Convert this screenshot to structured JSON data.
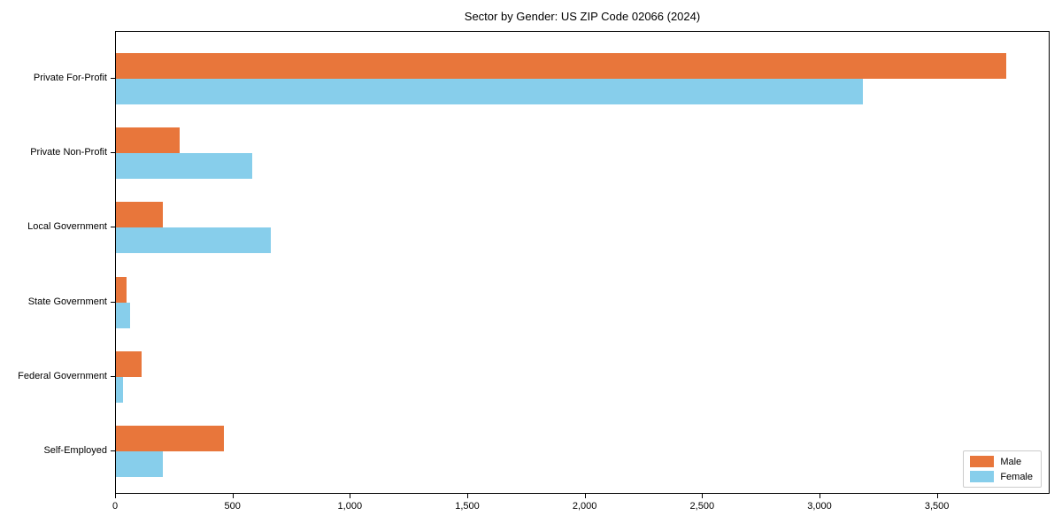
{
  "chart_data": {
    "type": "bar",
    "orientation": "horizontal",
    "title": "Sector by Gender: US ZIP Code 02066 (2024)",
    "categories": [
      "Private For-Profit",
      "Private Non-Profit",
      "Local Government",
      "State Government",
      "Federal Government",
      "Self-Employed"
    ],
    "series": [
      {
        "name": "Male",
        "color": "#e8763b",
        "values": [
          3790,
          270,
          200,
          45,
          110,
          460
        ]
      },
      {
        "name": "Female",
        "color": "#87ceeb",
        "values": [
          3180,
          580,
          660,
          60,
          30,
          200
        ]
      }
    ],
    "xlabel": "",
    "ylabel": "",
    "xlim": [
      0,
      3980
    ],
    "xticks": [
      0,
      500,
      1000,
      1500,
      2000,
      2500,
      3000,
      3500
    ],
    "xtick_labels": [
      "0",
      "500",
      "1,000",
      "1,500",
      "2,000",
      "2,500",
      "3,000",
      "3,500"
    ],
    "grid": false,
    "legend_position": "lower right"
  }
}
